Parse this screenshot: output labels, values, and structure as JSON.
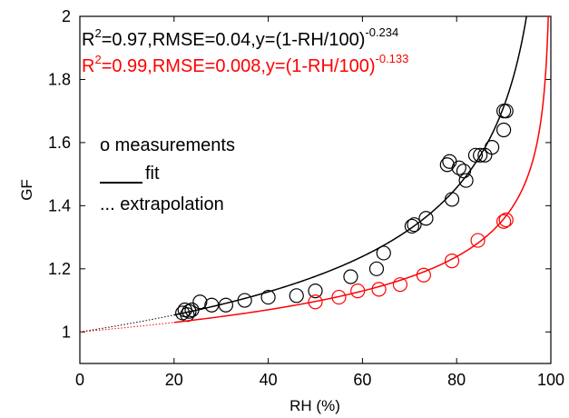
{
  "chart_data": {
    "type": "scatter",
    "xlabel": "RH (%)",
    "ylabel": "GF",
    "xlim": [
      0,
      100
    ],
    "ylim": [
      0.9,
      2.0
    ],
    "xticks": [
      "0",
      "20",
      "40",
      "60",
      "80",
      "100"
    ],
    "yticks": [
      "1",
      "1.2",
      "1.4",
      "1.6",
      "1.8",
      "2"
    ],
    "grid": false,
    "legend_position": "middle-left",
    "legend": {
      "measurements": "o measurements",
      "fit": "fit",
      "extrapolation": "... extrapolation"
    },
    "annotations": [
      {
        "prefix": "R",
        "sup1": "2",
        "mid": "=0.97,RMSE=0.04,y=(1-RH/100)",
        "sup2": "-0.234",
        "color": "#000000"
      },
      {
        "prefix": "R",
        "sup1": "2",
        "mid": "=0.99,RMSE=0.008,y=(1-RH/100)",
        "sup2": "-0.133",
        "color": "#ff0000"
      }
    ],
    "series": [
      {
        "color": "#000000",
        "exponent": -0.234,
        "fit_range": [
          20,
          99.95
        ],
        "extrapolation_range": [
          0,
          20
        ],
        "measurements": [
          [
            21.8,
            1.06
          ],
          [
            22.3,
            1.07
          ],
          [
            22.8,
            1.055
          ],
          [
            23.2,
            1.065
          ],
          [
            23.8,
            1.07
          ],
          [
            25.5,
            1.095
          ],
          [
            28.0,
            1.085
          ],
          [
            31.0,
            1.085
          ],
          [
            35.0,
            1.1
          ],
          [
            40.0,
            1.11
          ],
          [
            46.0,
            1.115
          ],
          [
            50.0,
            1.13
          ],
          [
            57.5,
            1.175
          ],
          [
            63.0,
            1.2
          ],
          [
            64.5,
            1.25
          ],
          [
            70.5,
            1.335
          ],
          [
            71.0,
            1.34
          ],
          [
            73.5,
            1.36
          ],
          [
            78.0,
            1.53
          ],
          [
            78.5,
            1.54
          ],
          [
            79.0,
            1.42
          ],
          [
            80.5,
            1.52
          ],
          [
            81.5,
            1.51
          ],
          [
            82.0,
            1.48
          ],
          [
            84.0,
            1.56
          ],
          [
            85.0,
            1.56
          ],
          [
            86.0,
            1.56
          ],
          [
            87.5,
            1.585
          ],
          [
            90.0,
            1.7
          ],
          [
            90.5,
            1.7
          ],
          [
            90.0,
            1.64
          ]
        ]
      },
      {
        "color": "#ff0000",
        "exponent": -0.133,
        "fit_range": [
          20,
          99.95
        ],
        "extrapolation_range": [
          0,
          20
        ],
        "measurements": [
          [
            50.0,
            1.095
          ],
          [
            55.0,
            1.11
          ],
          [
            59.0,
            1.13
          ],
          [
            63.5,
            1.135
          ],
          [
            68.0,
            1.15
          ],
          [
            73.0,
            1.18
          ],
          [
            79.0,
            1.225
          ],
          [
            84.5,
            1.29
          ],
          [
            90.0,
            1.35
          ],
          [
            90.5,
            1.355
          ]
        ]
      }
    ]
  }
}
